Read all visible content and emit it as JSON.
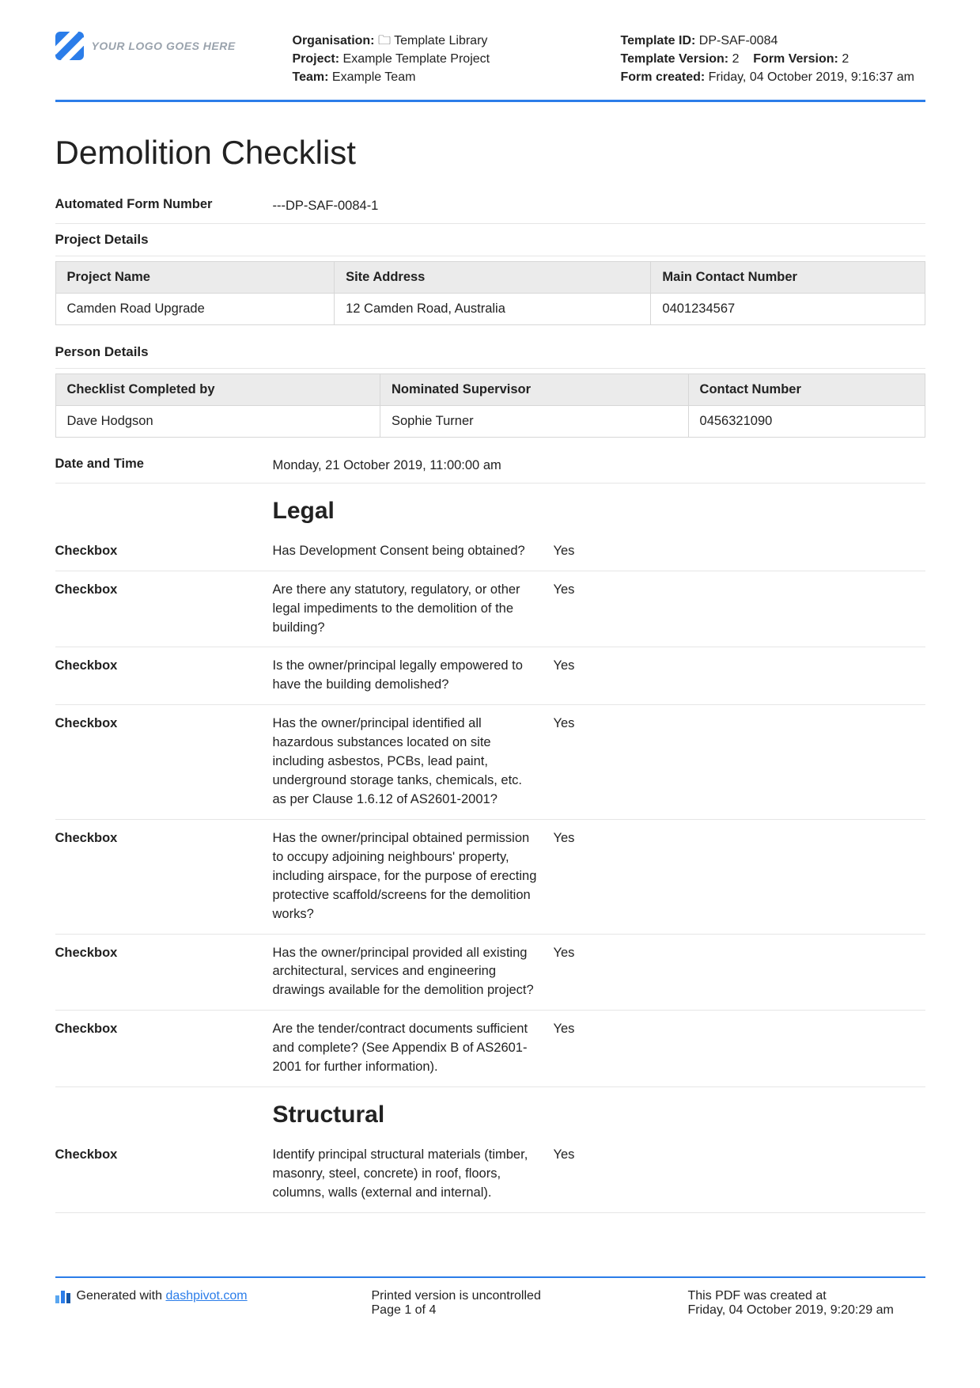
{
  "header": {
    "logo_text": "YOUR LOGO GOES HERE",
    "org_label": "Organisation:",
    "org_value": "🗀 Template Library",
    "project_label": "Project:",
    "project_value": "Example Template Project",
    "team_label": "Team:",
    "team_value": "Example Team",
    "template_id_label": "Template ID:",
    "template_id_value": "DP-SAF-0084",
    "template_version_label": "Template Version:",
    "template_version_value": "2",
    "form_version_label": "Form Version:",
    "form_version_value": "2",
    "form_created_label": "Form created:",
    "form_created_value": "Friday, 04 October 2019, 9:16:37 am"
  },
  "title": "Demolition Checklist",
  "form_number": {
    "label": "Automated Form Number",
    "value": "---DP-SAF-0084-1"
  },
  "project_details": {
    "heading": "Project Details",
    "columns": [
      "Project Name",
      "Site Address",
      "Main Contact Number"
    ],
    "row": [
      "Camden Road Upgrade",
      "12 Camden Road, Australia",
      "0401234567"
    ]
  },
  "person_details": {
    "heading": "Person Details",
    "columns": [
      "Checklist Completed by",
      "Nominated Supervisor",
      "Contact Number"
    ],
    "row": [
      "Dave Hodgson",
      "Sophie Turner",
      "0456321090"
    ]
  },
  "date_time": {
    "label": "Date and Time",
    "value": "Monday, 21 October 2019, 11:00:00 am"
  },
  "sections": [
    {
      "title": "Legal",
      "items": [
        {
          "label": "Checkbox",
          "question": "Has Development Consent being obtained?",
          "answer": "Yes"
        },
        {
          "label": "Checkbox",
          "question": "Are there any statutory, regulatory, or other legal impediments to the demolition of the building?",
          "answer": "Yes"
        },
        {
          "label": "Checkbox",
          "question": "Is the owner/principal legally empowered to have the building demolished?",
          "answer": "Yes"
        },
        {
          "label": "Checkbox",
          "question": "Has the owner/principal identified all hazardous substances located on site including asbestos, PCBs, lead paint, underground storage tanks, chemicals, etc. as per Clause 1.6.12 of AS2601-2001?",
          "answer": "Yes"
        },
        {
          "label": "Checkbox",
          "question": "Has the owner/principal obtained permission to occupy adjoining neighbours' property, including airspace, for the purpose of erecting protective scaffold/screens for the demolition works?",
          "answer": "Yes"
        },
        {
          "label": "Checkbox",
          "question": "Has the owner/principal provided all existing architectural, services and engineering drawings available for the demolition project?",
          "answer": "Yes"
        },
        {
          "label": "Checkbox",
          "question": "Are the tender/contract documents sufficient and complete? (See Appendix B of AS2601-2001 for further information).",
          "answer": "Yes"
        }
      ]
    },
    {
      "title": "Structural",
      "items": [
        {
          "label": "Checkbox",
          "question": "Identify principal structural materials (timber, masonry, steel, concrete) in roof, floors, columns, walls (external and internal).",
          "answer": "Yes"
        }
      ]
    }
  ],
  "footer": {
    "generated_text": "Generated with ",
    "generated_link": "dashpivot.com",
    "printed_text": "Printed version is uncontrolled",
    "page_text": "Page 1 of 4",
    "created_label": "This PDF was created at",
    "created_value": "Friday, 04 October 2019, 9:20:29 am"
  }
}
